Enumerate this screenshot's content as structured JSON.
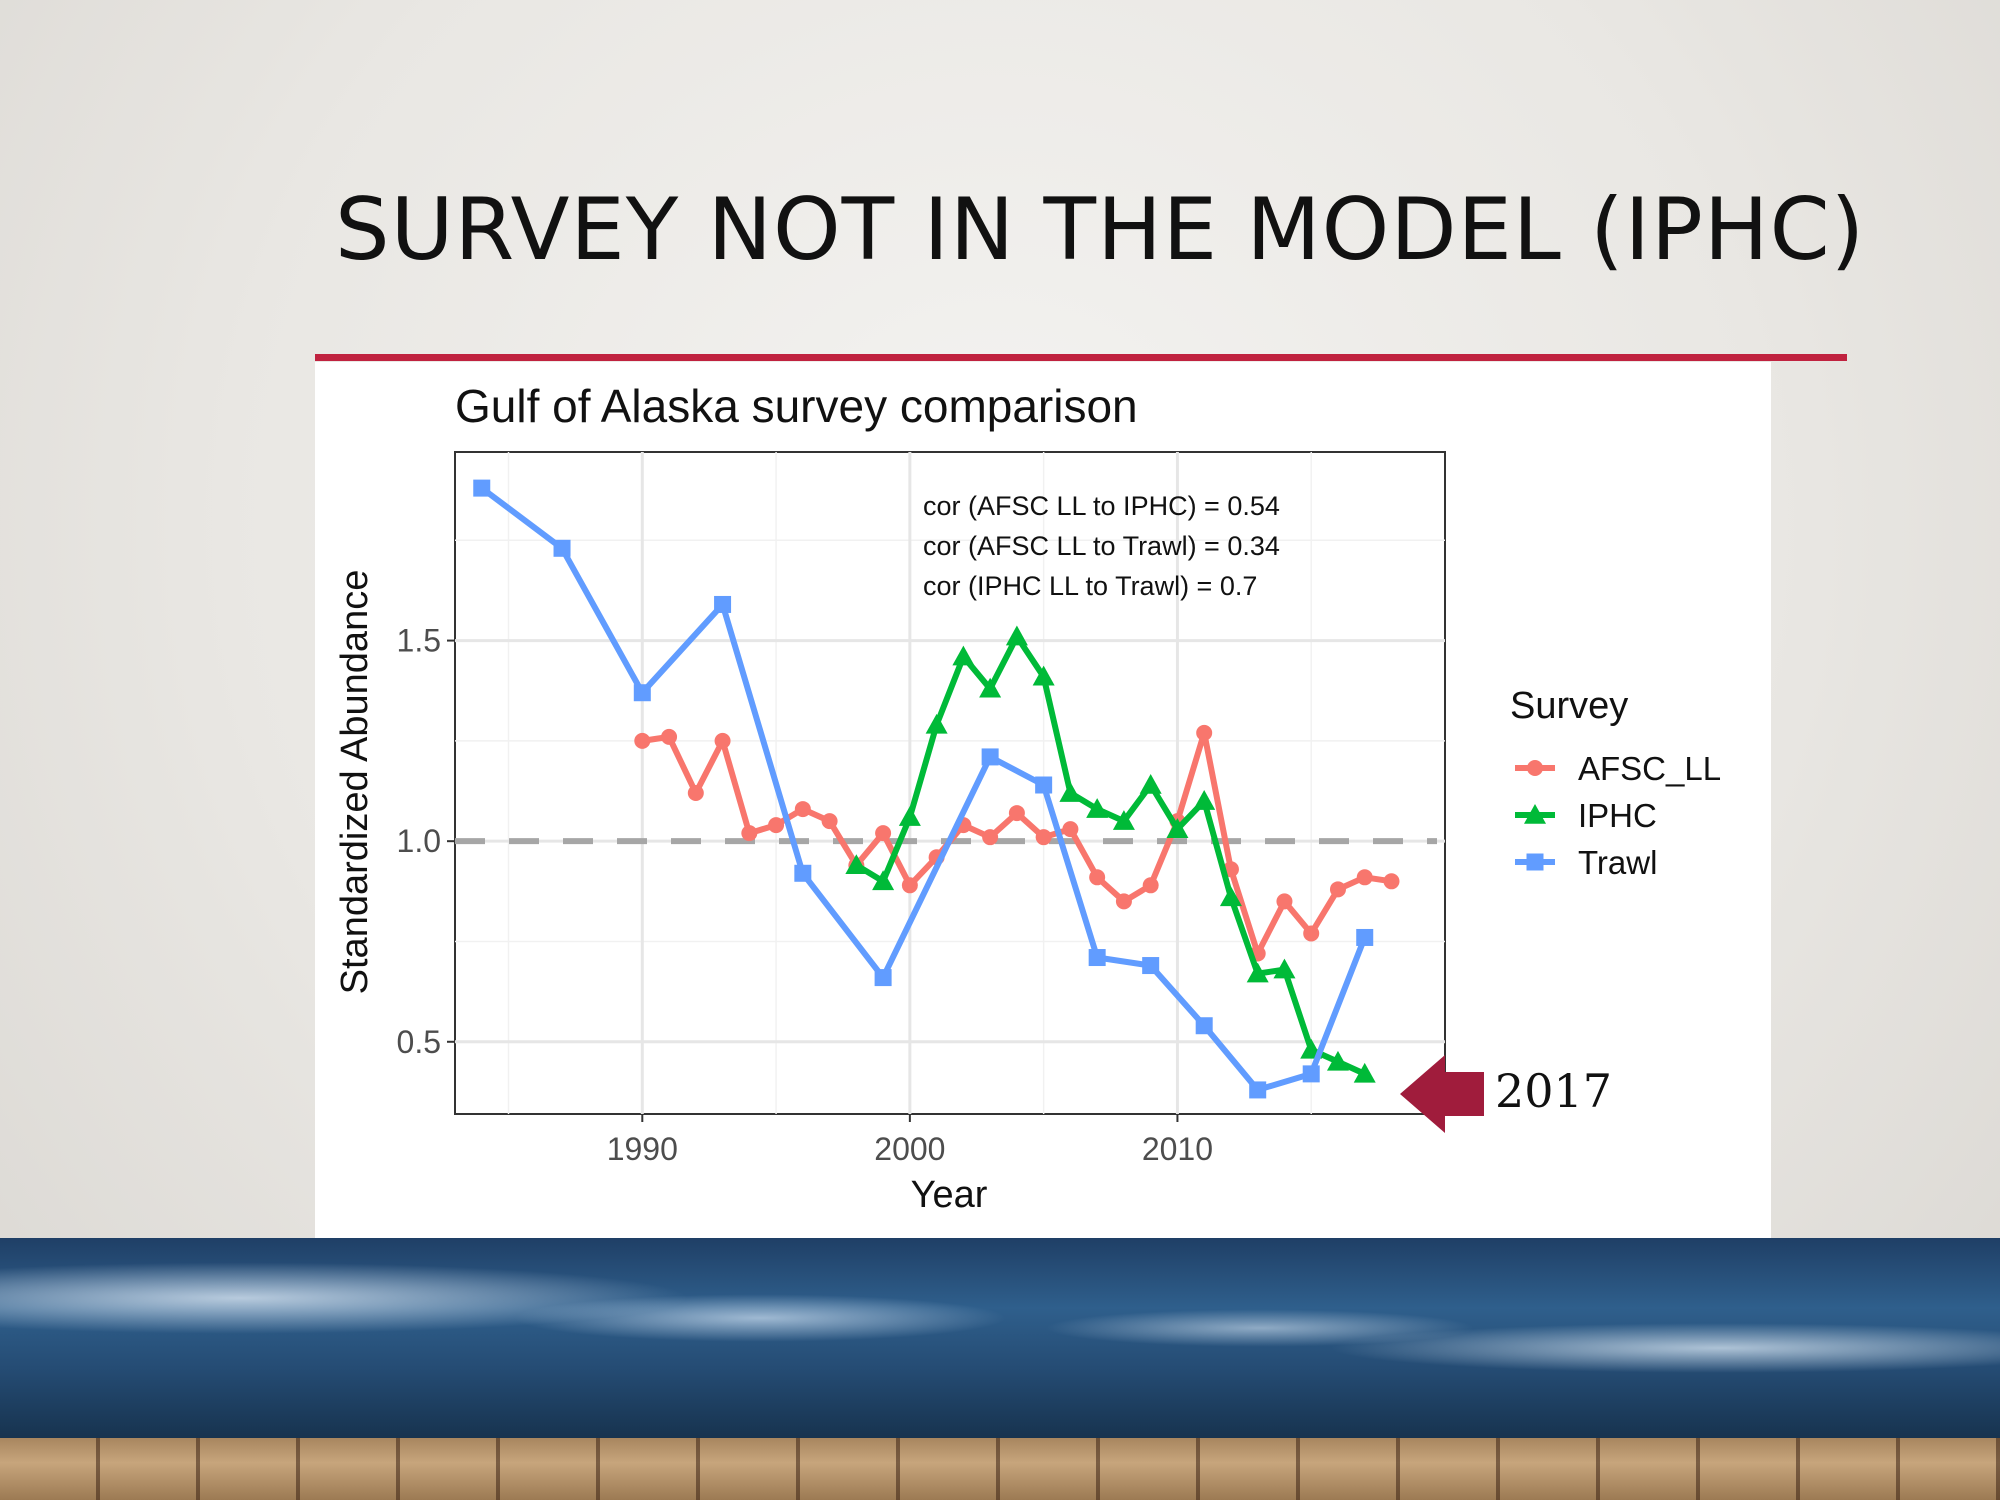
{
  "slide": {
    "title": "SURVEY NOT IN THE MODEL (IPHC)",
    "accent_color": "#c0223f",
    "callout_label": "2017",
    "callout_arrow_color": "#a01c3c"
  },
  "chart_data": {
    "type": "line",
    "title": "Gulf of Alaska survey comparison",
    "xlabel": "Year",
    "ylabel": "Standardized Abundance",
    "xlim": [
      1983,
      2020
    ],
    "ylim": [
      0.32,
      1.97
    ],
    "x_ticks": [
      1990,
      2000,
      2010
    ],
    "y_ticks": [
      0.5,
      1.0,
      1.5
    ],
    "x_tick_labels": [
      "1990",
      "2000",
      "2010"
    ],
    "y_tick_labels": [
      "0.5",
      "1.0",
      "1.5"
    ],
    "reference_line": {
      "y": 1.0,
      "style": "dashed",
      "color": "#a6a6a6"
    },
    "grid": true,
    "legend": {
      "title": "Survey",
      "position": "right"
    },
    "annotations": [
      "cor (AFSC LL to IPHC) = 0.54",
      "cor (AFSC LL to Trawl) = 0.34",
      "cor (IPHC LL to Trawl) =   0.7"
    ],
    "series": [
      {
        "name": "AFSC_LL",
        "marker": "circle",
        "color": "#f8766d",
        "x": [
          1990,
          1991,
          1992,
          1993,
          1994,
          1995,
          1996,
          1997,
          1998,
          1999,
          2000,
          2001,
          2002,
          2003,
          2004,
          2005,
          2006,
          2007,
          2008,
          2009,
          2010,
          2011,
          2012,
          2013,
          2014,
          2015,
          2016,
          2017,
          2018
        ],
        "y": [
          1.25,
          1.26,
          1.12,
          1.25,
          1.02,
          1.04,
          1.08,
          1.05,
          0.94,
          1.02,
          0.89,
          0.96,
          1.04,
          1.01,
          1.07,
          1.01,
          1.03,
          0.91,
          0.85,
          0.89,
          1.05,
          1.27,
          0.93,
          0.72,
          0.85,
          0.77,
          0.88,
          0.91,
          0.9
        ]
      },
      {
        "name": "IPHC",
        "marker": "triangle",
        "color": "#00ba38",
        "x": [
          1998,
          1999,
          2000,
          2001,
          2002,
          2003,
          2004,
          2005,
          2006,
          2007,
          2008,
          2009,
          2010,
          2011,
          2012,
          2013,
          2014,
          2015,
          2016,
          2017
        ],
        "y": [
          0.94,
          0.9,
          1.06,
          1.29,
          1.46,
          1.38,
          1.51,
          1.41,
          1.12,
          1.08,
          1.05,
          1.14,
          1.03,
          1.1,
          0.86,
          0.67,
          0.68,
          0.48,
          0.45,
          0.42
        ]
      },
      {
        "name": "Trawl",
        "marker": "square",
        "color": "#619cff",
        "x": [
          1984,
          1987,
          1990,
          1993,
          1996,
          1999,
          2003,
          2005,
          2007,
          2009,
          2011,
          2013,
          2015,
          2017
        ],
        "y": [
          1.88,
          1.73,
          1.37,
          1.59,
          0.92,
          0.66,
          1.21,
          1.14,
          0.71,
          0.69,
          0.54,
          0.38,
          0.42,
          0.76
        ]
      }
    ]
  }
}
